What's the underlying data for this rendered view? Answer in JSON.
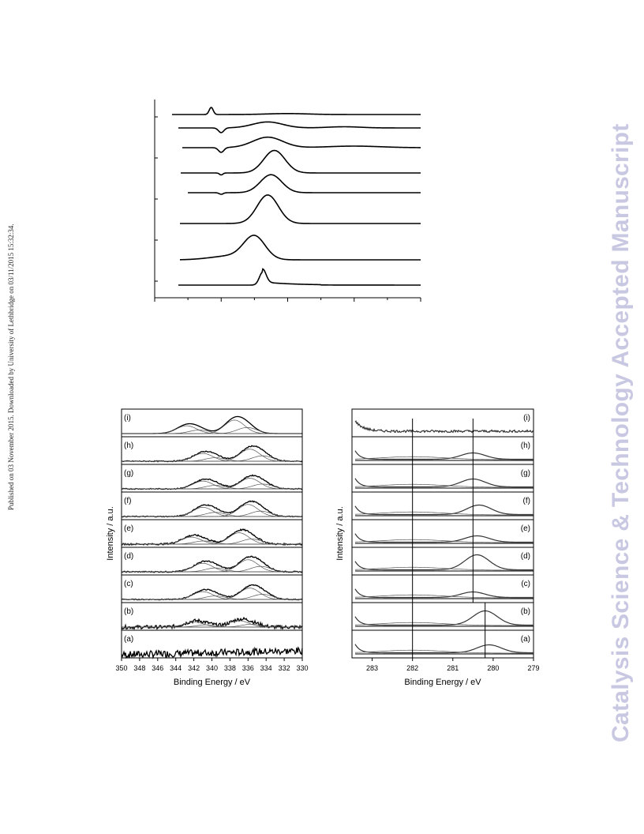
{
  "page": {
    "published_note": "Published on 03 November 2015. Downloaded by University of Lethbridge on 03/11/2015 15:32:34.",
    "journal_watermark": "Catalysis Science & Technology Accepted Manuscript"
  },
  "chart_data": [
    {
      "type": "line",
      "title": "",
      "xlabel": "",
      "ylabel": "",
      "xlim": [
        0,
        8
      ],
      "tick_labels": [],
      "series": [
        {
          "curve": "sharp-up",
          "center": 3.25,
          "height": 0.55
        },
        {
          "curve": "broad",
          "center": 3.0,
          "height": 0.75
        },
        {
          "curve": "broad",
          "center": 3.4,
          "height": 0.95
        },
        {
          "curve": "broad",
          "center": 3.5,
          "height": 0.6
        },
        {
          "curve": "broad",
          "center": 3.6,
          "height": 0.75
        },
        {
          "curve": "broad-dip",
          "center": 3.4,
          "height": 0.35
        },
        {
          "curve": "broad-dip",
          "center": 3.4,
          "height": 0.2
        },
        {
          "curve": "spike",
          "center": 1.7,
          "height": 0.4
        }
      ]
    },
    {
      "type": "line",
      "title": "",
      "xlabel": "Binding Energy / eV",
      "ylabel": "Intensity / a.u.",
      "xlim": [
        350,
        330
      ],
      "ticks": [
        "350",
        "348",
        "346",
        "344",
        "342",
        "340",
        "338",
        "336",
        "334",
        "332",
        "330"
      ],
      "panels": [
        {
          "label": "(a)",
          "noise": 0.35
        },
        {
          "label": "(b)",
          "noise": 0.18,
          "peaks": [
            [
              342.0,
              0.35
            ],
            [
              337.0,
              0.45
            ]
          ]
        },
        {
          "label": "(c)",
          "noise": 0.05,
          "peaks": [
            [
              341.0,
              0.55
            ],
            [
              335.8,
              0.8
            ]
          ]
        },
        {
          "label": "(d)",
          "noise": 0.06,
          "peaks": [
            [
              341.0,
              0.6
            ],
            [
              336.0,
              0.85
            ]
          ]
        },
        {
          "label": "(e)",
          "noise": 0.08,
          "peaks": [
            [
              342.3,
              0.5
            ],
            [
              337.0,
              0.8
            ]
          ]
        },
        {
          "label": "(f)",
          "noise": 0.05,
          "peaks": [
            [
              341.0,
              0.65
            ],
            [
              336.0,
              0.85
            ]
          ]
        },
        {
          "label": "(g)",
          "noise": 0.05,
          "peaks": [
            [
              341.0,
              0.55
            ],
            [
              335.8,
              0.75
            ]
          ]
        },
        {
          "label": "(h)",
          "noise": 0.05,
          "peaks": [
            [
              341.0,
              0.55
            ],
            [
              335.8,
              0.85
            ]
          ]
        },
        {
          "label": "(i)",
          "noise": 0.0,
          "peaks": [
            [
              342.8,
              0.55
            ],
            [
              337.5,
              0.95
            ]
          ]
        }
      ]
    },
    {
      "type": "line",
      "title": "",
      "xlabel": "Binding Energy / eV",
      "ylabel": "Intensity / a.u.",
      "xlim": [
        283.5,
        279
      ],
      "ticks": [
        "283",
        "282",
        "281",
        "280",
        "279"
      ],
      "reference_lines": [
        282.0,
        280.5,
        280.2
      ],
      "panels": [
        {
          "label": "(a)",
          "peak": [
            280.1,
            0.5
          ]
        },
        {
          "label": "(b)",
          "peak": [
            280.2,
            0.9
          ]
        },
        {
          "label": "(c)",
          "peak": [
            280.5,
            0.35
          ]
        },
        {
          "label": "(d)",
          "peak": [
            280.4,
            0.95
          ]
        },
        {
          "label": "(e)",
          "peak": [
            280.4,
            0.4
          ]
        },
        {
          "label": "(f)",
          "peak": [
            280.35,
            0.6
          ]
        },
        {
          "label": "(g)",
          "peak": [
            280.5,
            0.5
          ]
        },
        {
          "label": "(h)",
          "peak": [
            280.5,
            0.4
          ]
        },
        {
          "label": "(i)",
          "peak": null
        }
      ]
    }
  ]
}
